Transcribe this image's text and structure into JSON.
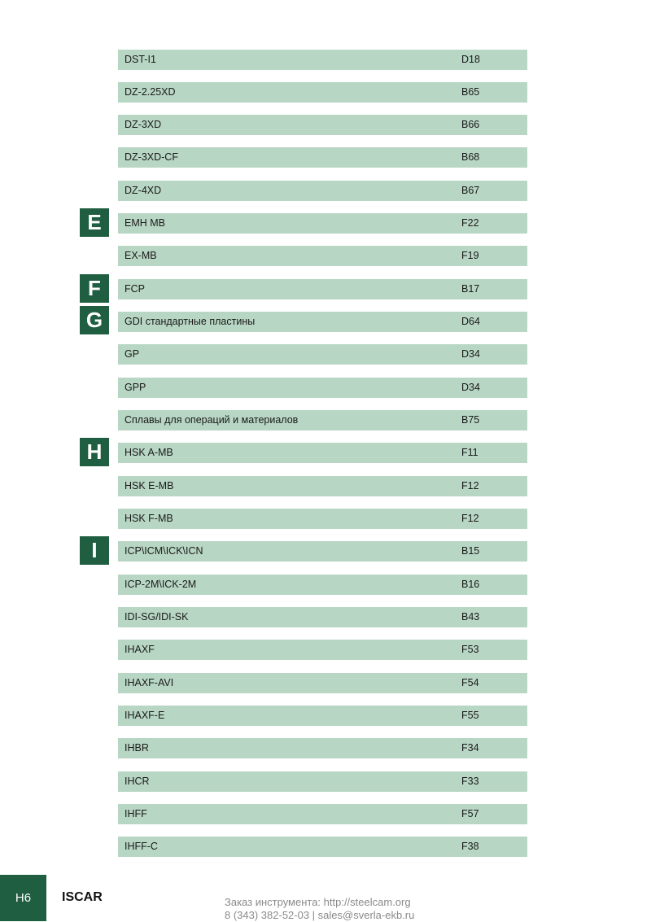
{
  "entries": [
    {
      "name": "DST-I1",
      "page": "D18"
    },
    {
      "name": "DZ-2.25XD",
      "page": "B65"
    },
    {
      "name": "DZ-3XD",
      "page": "B66"
    },
    {
      "name": "DZ-3XD-CF",
      "page": "B68"
    },
    {
      "name": "DZ-4XD",
      "page": "B67"
    },
    {
      "name": "EMH MB",
      "page": "F22"
    },
    {
      "name": "EX-MB",
      "page": "F19"
    },
    {
      "name": "FCP",
      "page": "B17"
    },
    {
      "name": "GDI стандартные пластины",
      "page": "D64"
    },
    {
      "name": "GP",
      "page": "D34"
    },
    {
      "name": "GPP",
      "page": "D34"
    },
    {
      "name": "Сплавы для операций и материалов",
      "page": "B75"
    },
    {
      "name": "HSK A-MB",
      "page": "F11"
    },
    {
      "name": "HSK E-MB",
      "page": "F12"
    },
    {
      "name": "HSK F-MB",
      "page": "F12"
    },
    {
      "name": "ICP\\ICM\\ICK\\ICN",
      "page": "B15"
    },
    {
      "name": "ICP-2M\\ICK-2M",
      "page": "B16"
    },
    {
      "name": "IDI-SG/IDI-SK",
      "page": "B43"
    },
    {
      "name": "IHAXF",
      "page": "F53"
    },
    {
      "name": "IHAXF-AVI",
      "page": "F54"
    },
    {
      "name": "IHAXF-E",
      "page": "F55"
    },
    {
      "name": "IHBR",
      "page": "F34"
    },
    {
      "name": "IHCR",
      "page": "F33"
    },
    {
      "name": "IHFF",
      "page": "F57"
    },
    {
      "name": "IHFF-C",
      "page": "F38"
    }
  ],
  "letters": {
    "e": "E",
    "f": "F",
    "g": "G",
    "h": "H",
    "i": "I"
  },
  "footer": {
    "page_number": "H6",
    "brand": "ISCAR",
    "order_line": "Заказ инструмента: http://steelcam.org",
    "contact_line": "8 (343) 382-52-03  |  sales@sverla-ekb.ru"
  },
  "colors": {
    "row_background": "#b8d6c4",
    "accent_green": "#1f5e40"
  }
}
